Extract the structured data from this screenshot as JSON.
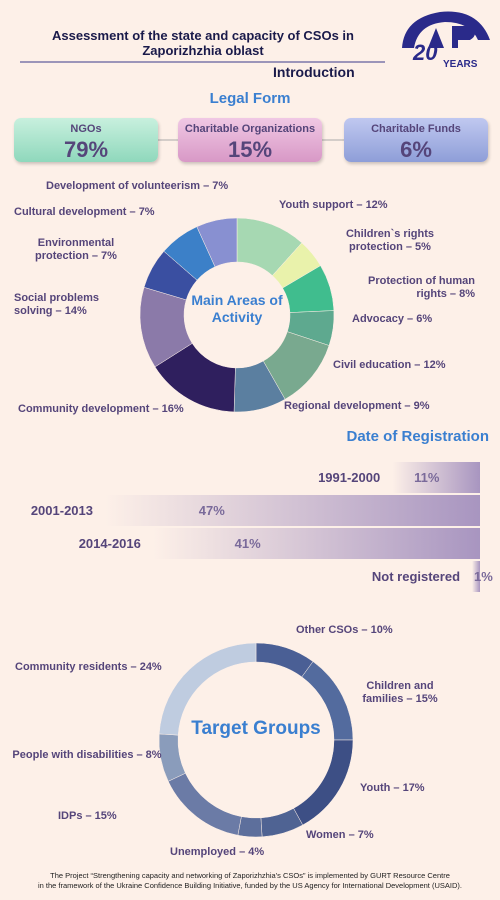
{
  "header": {
    "title": "Assessment of the state and capacity of CSOs in Zaporizhzhia oblast",
    "logo_number": "20",
    "logo_text": "YEARS",
    "section": "Introduction"
  },
  "legal_form": {
    "title": "Legal Form",
    "items": [
      {
        "label": "NGOs",
        "value": "79%"
      },
      {
        "label": "Charitable Organizations",
        "value": "15%"
      },
      {
        "label": "Charitable Funds",
        "value": "6%"
      }
    ]
  },
  "chart_data": [
    {
      "type": "donut",
      "center_label": "Main Areas of Activity",
      "categories": [
        "Youth support – 12%",
        "Children`s rights protection – 5%",
        "Protection of human rights – 8%",
        "Advocacy – 6%",
        "Civil education – 12%",
        "Regional development – 9%",
        "Community development – 16%",
        "Social problems solving  – 14%",
        "Environmental protection – 7%",
        "Cultural development – 7%",
        "Development of volunteerism – 7%"
      ],
      "values": [
        12,
        5,
        8,
        6,
        12,
        9,
        16,
        14,
        7,
        7,
        7
      ],
      "colors": [
        "#a6d8b2",
        "#e9f2ab",
        "#40bd8e",
        "#5ea98f",
        "#79a98f",
        "#5b7fa0",
        "#2f1f5e",
        "#8b7aa9",
        "#3a4fa1",
        "#3c80c8",
        "#8890d1"
      ]
    },
    {
      "type": "hbar",
      "title": "Date of Registration",
      "categories": [
        "1991-2000",
        "2001-2013",
        "2014-2016",
        "Not registered"
      ],
      "values": [
        11,
        47,
        41,
        1
      ],
      "value_labels": [
        "11%",
        "47%",
        "41%",
        "1%"
      ],
      "color": "#a895c0"
    },
    {
      "type": "donut",
      "center_label": "Target Groups",
      "categories": [
        "Other CSOs – 10%",
        "Children and families – 15%",
        "Youth – 17%",
        "Women – 7%",
        "Unemployed – 4%",
        "IDPs – 15%",
        "People with disabilities – 8%",
        "Community residents – 24%"
      ],
      "values": [
        10,
        15,
        17,
        7,
        4,
        15,
        8,
        24
      ],
      "colors": [
        "#4a5f95",
        "#536b9e",
        "#3d4f85",
        "#4f6393",
        "#5d6f9c",
        "#6b7ba6",
        "#8a9cbb",
        "#bfcce0"
      ]
    }
  ],
  "footer": {
    "lines": [
      "The Project “Strengthening capacity and networking of Zaporizhzhia’s CSOs” is implemented by GURT Resource Centre",
      "in the framework of the Ukraine Confidence Building Initiative, funded by the US Agency for International Development (USAID)."
    ]
  }
}
